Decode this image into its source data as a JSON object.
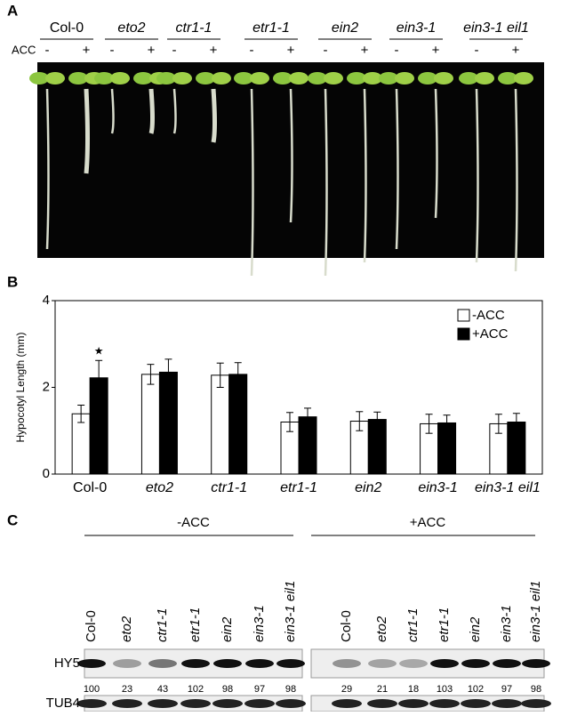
{
  "panel_a": {
    "label": "A",
    "genotypes": [
      "Col-0",
      "eto2",
      "ctr1-1",
      "etr1-1",
      "ein2",
      "ein3-1",
      "ein3-1 eil1"
    ],
    "treatment": "ACC",
    "treatment_levels": [
      "-",
      "+"
    ]
  },
  "chart_data": {
    "type": "bar",
    "panel_label": "B",
    "ylabel": "Hypocotyl Length (mm)",
    "categories": [
      "Col-0",
      "eto2",
      "ctr1-1",
      "etr1-1",
      "ein2",
      "ein3-1",
      "ein3-1 eil1"
    ],
    "series": [
      {
        "name": "-ACC",
        "color": "#ffffff",
        "values": [
          1.39,
          2.3,
          2.28,
          1.2,
          1.22,
          1.16,
          1.16
        ],
        "errors": [
          0.2,
          0.23,
          0.28,
          0.22,
          0.22,
          0.22,
          0.22
        ]
      },
      {
        "name": "+ACC",
        "color": "#000000",
        "values": [
          2.22,
          2.35,
          2.3,
          1.32,
          1.26,
          1.18,
          1.2
        ],
        "errors": [
          0.4,
          0.3,
          0.27,
          0.2,
          0.17,
          0.18,
          0.2
        ]
      }
    ],
    "ylim": [
      0,
      4
    ],
    "yticks": [
      0,
      2,
      4
    ],
    "grid": false,
    "legend": "top-right",
    "annotation": "★"
  },
  "panel_c": {
    "label": "C",
    "groups": [
      "-ACC",
      "+ACC"
    ],
    "lanes": [
      "Col-0",
      "eto2",
      "ctr1-1",
      "etr1-1",
      "ein2",
      "ein3-1",
      "ein3-1 eil1"
    ],
    "rows": [
      "HY5",
      "TUB4"
    ],
    "hy5_levels": [
      [
        100,
        23,
        43,
        102,
        98,
        97,
        98
      ],
      [
        29,
        21,
        18,
        103,
        102,
        97,
        98
      ]
    ]
  }
}
